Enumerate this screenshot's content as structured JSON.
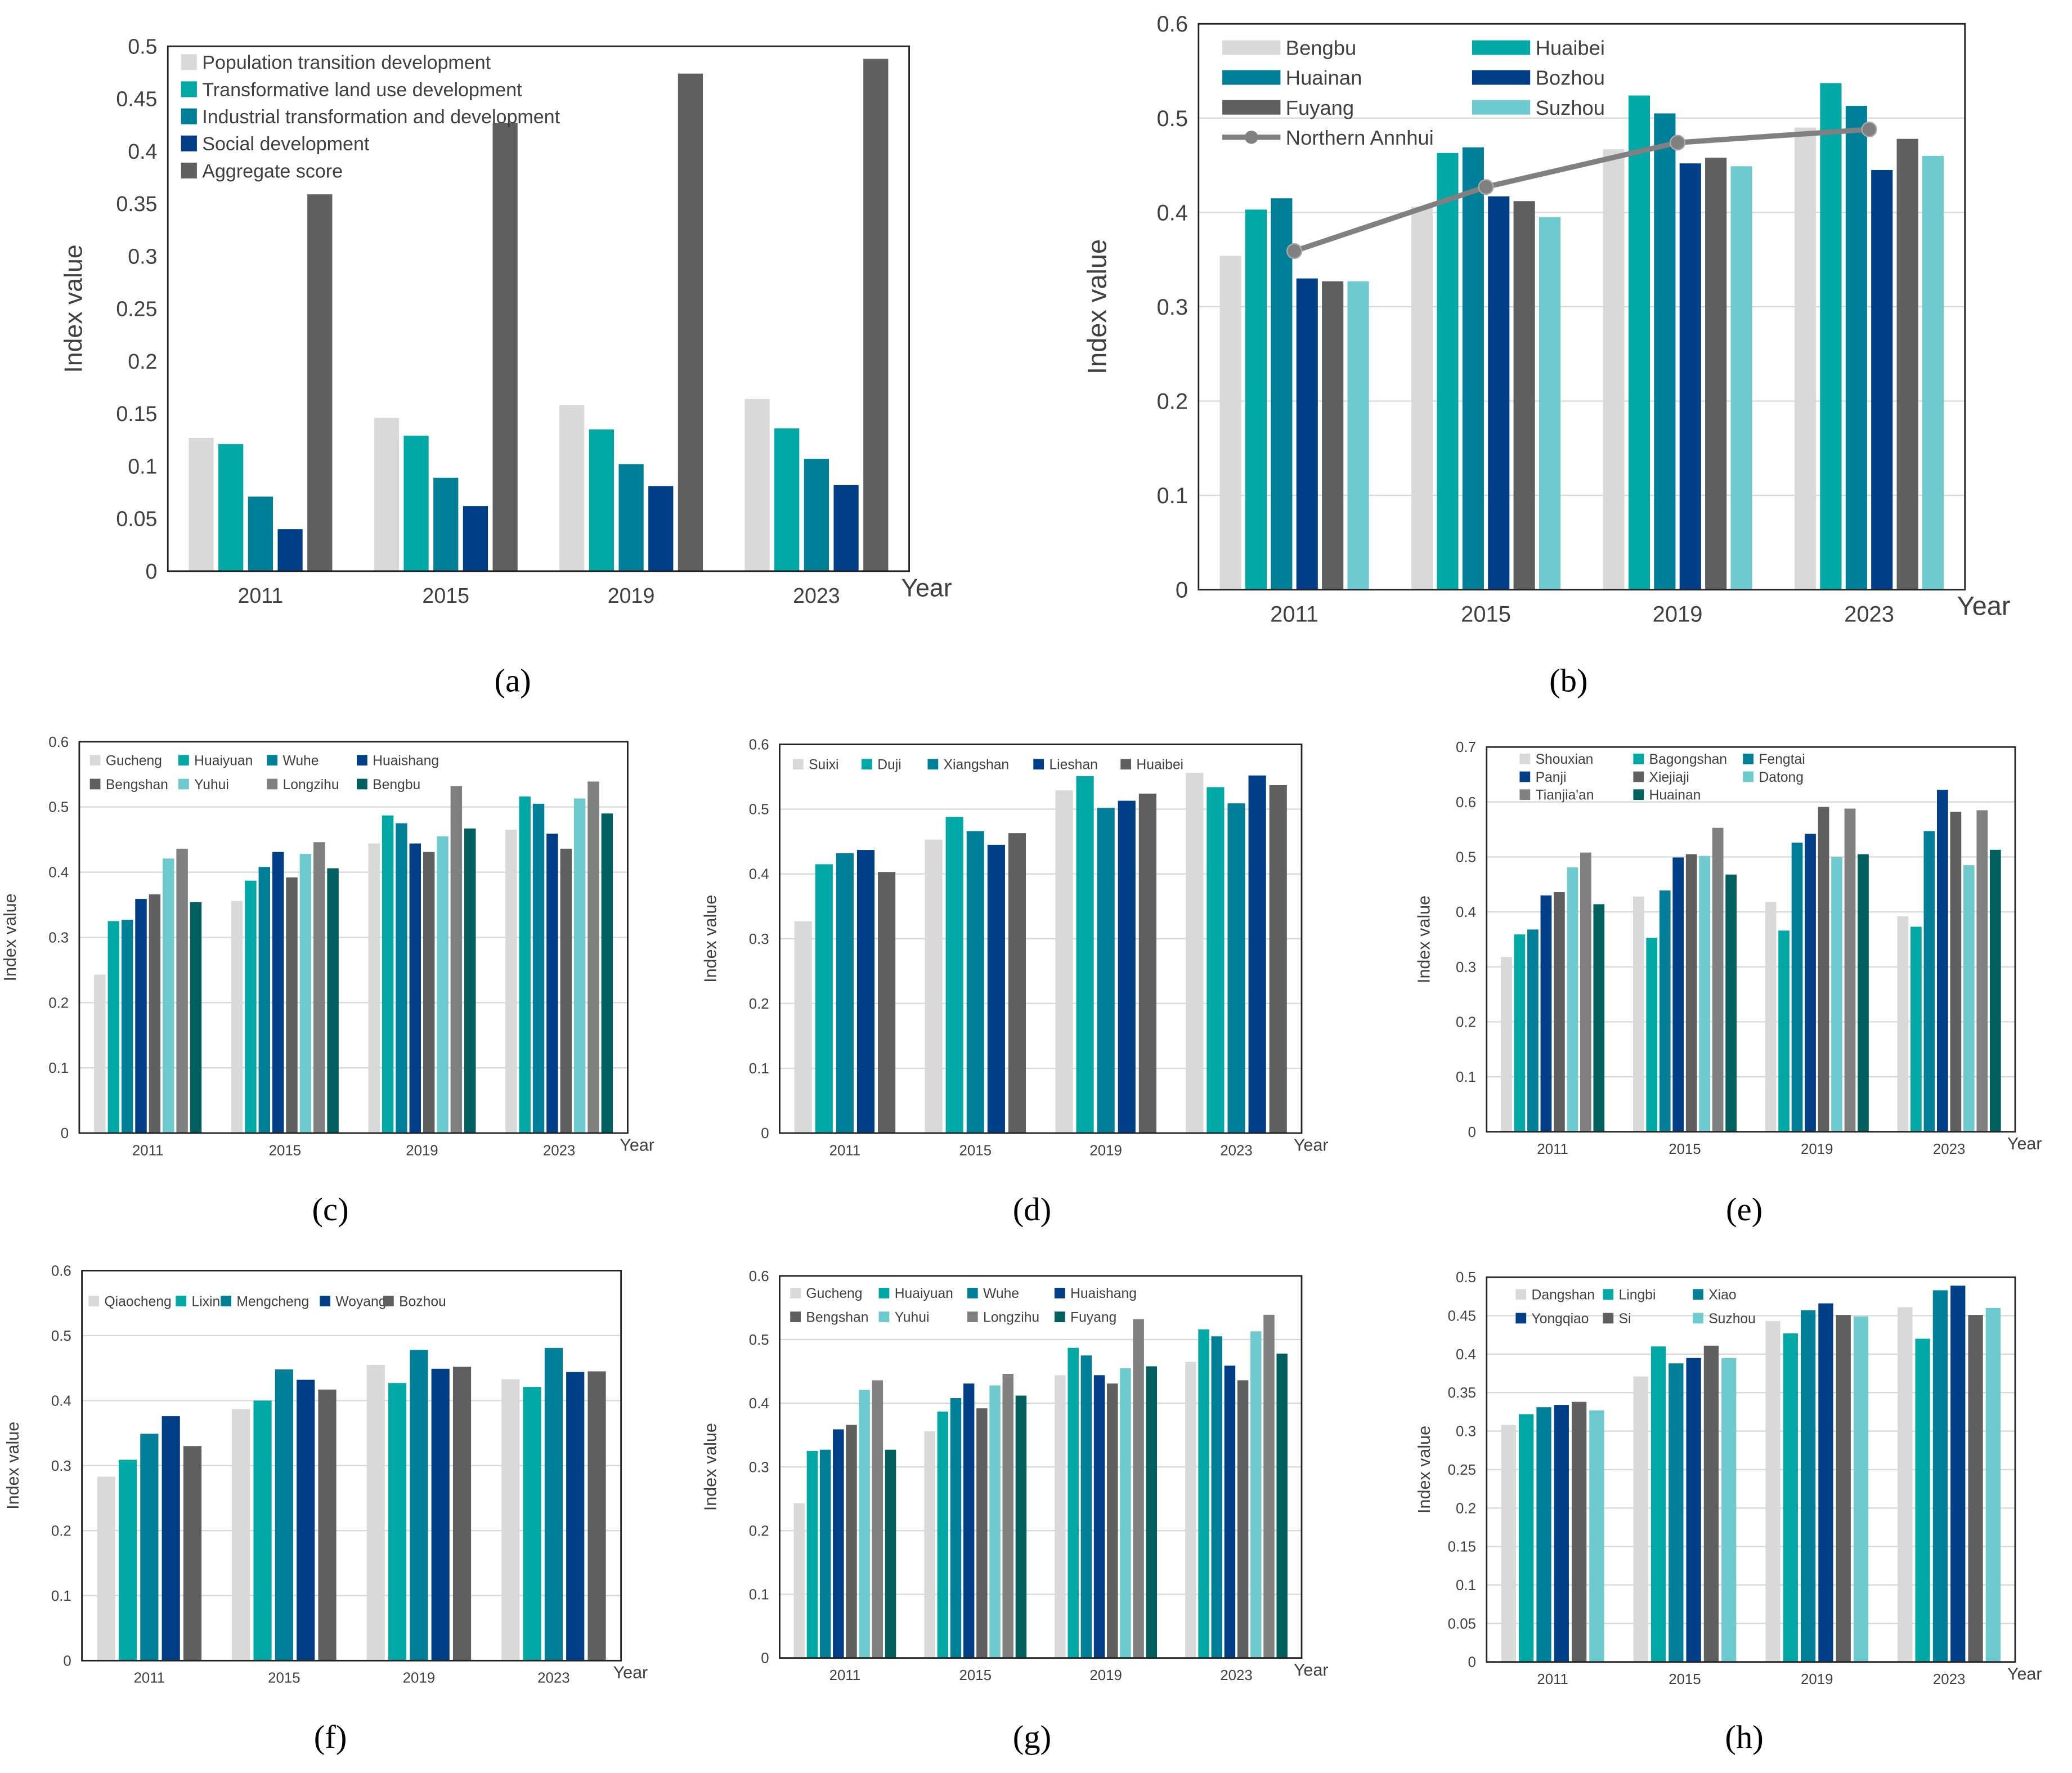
{
  "chart_data": [
    {
      "type": "bar",
      "caption": "(a)",
      "xlabel": "Year",
      "ylabel": "Index value",
      "ylim": [
        0,
        0.5
      ],
      "grid": false,
      "legend": "top-left",
      "categories": [
        "2011",
        "2015",
        "2019",
        "2023"
      ],
      "yticks": [
        "0",
        "0.05",
        "0.1",
        "0.15",
        "0.2",
        "0.25",
        "0.3",
        "0.35",
        "0.4",
        "0.45",
        "0.5"
      ],
      "series": [
        {
          "name": "Population transition development",
          "color": "#d9d9d9",
          "values": [
            0.127,
            0.146,
            0.158,
            0.164
          ]
        },
        {
          "name": "Transformative land use development",
          "color": "#00a9a5",
          "values": [
            0.121,
            0.129,
            0.135,
            0.136
          ]
        },
        {
          "name": "Industrial transformation and development",
          "color": "#007f99",
          "values": [
            0.071,
            0.089,
            0.102,
            0.107
          ]
        },
        {
          "name": "Social development",
          "color": "#003f87",
          "values": [
            0.04,
            0.062,
            0.081,
            0.082
          ]
        },
        {
          "name": "Aggregate score",
          "color": "#5f5f5f",
          "values": [
            0.359,
            0.427,
            0.474,
            0.488
          ]
        }
      ]
    },
    {
      "type": "bar",
      "caption": "(b)",
      "xlabel": "Year",
      "ylabel": "Index value",
      "ylim": [
        0,
        0.6
      ],
      "grid": true,
      "legend": "top-left",
      "categories": [
        "2011",
        "2015",
        "2019",
        "2023"
      ],
      "yticks": [
        "0",
        "0.1",
        "0.2",
        "0.3",
        "0.4",
        "0.5",
        "0.6"
      ],
      "series": [
        {
          "name": "Bengbu",
          "color": "#d9d9d9",
          "values": [
            0.354,
            0.406,
            0.467,
            0.49
          ]
        },
        {
          "name": "Huaibei",
          "color": "#00a9a5",
          "values": [
            0.403,
            0.463,
            0.524,
            0.537
          ]
        },
        {
          "name": "Huainan",
          "color": "#007f99",
          "values": [
            0.415,
            0.469,
            0.505,
            0.513
          ]
        },
        {
          "name": "Bozhou",
          "color": "#003f87",
          "values": [
            0.33,
            0.417,
            0.452,
            0.445
          ]
        },
        {
          "name": "Fuyang",
          "color": "#5f5f5f",
          "values": [
            0.327,
            0.412,
            0.458,
            0.478
          ]
        },
        {
          "name": "Suzhou",
          "color": "#6dcacf",
          "values": [
            0.327,
            0.395,
            0.449,
            0.46
          ]
        }
      ],
      "line_series": {
        "name": "Northern Annhui",
        "color": "#808080",
        "values": [
          0.359,
          0.427,
          0.474,
          0.488
        ]
      }
    },
    {
      "type": "bar",
      "caption": "(c)",
      "xlabel": "Year",
      "ylabel": "Index value",
      "ylim": [
        0,
        0.6
      ],
      "grid": true,
      "legend": "top",
      "categories": [
        "2011",
        "2015",
        "2019",
        "2023"
      ],
      "yticks": [
        "0",
        "0.1",
        "0.2",
        "0.3",
        "0.4",
        "0.5",
        "0.6"
      ],
      "series": [
        {
          "name": "Gucheng",
          "color": "#d9d9d9",
          "values": [
            0.243,
            0.356,
            0.444,
            0.465
          ]
        },
        {
          "name": "Huaiyuan",
          "color": "#00a9a5",
          "values": [
            0.325,
            0.387,
            0.487,
            0.516
          ]
        },
        {
          "name": "Wuhe",
          "color": "#007f99",
          "values": [
            0.327,
            0.408,
            0.475,
            0.505
          ]
        },
        {
          "name": "Huaishang",
          "color": "#003f87",
          "values": [
            0.359,
            0.431,
            0.444,
            0.459
          ]
        },
        {
          "name": "Bengshan",
          "color": "#5f5f5f",
          "values": [
            0.366,
            0.392,
            0.431,
            0.436
          ]
        },
        {
          "name": "Yuhui",
          "color": "#6dcacf",
          "values": [
            0.421,
            0.428,
            0.455,
            0.513
          ]
        },
        {
          "name": "Longzihu",
          "color": "#808080",
          "values": [
            0.436,
            0.446,
            0.532,
            0.539
          ]
        },
        {
          "name": "Bengbu",
          "color": "#006060",
          "values": [
            0.354,
            0.406,
            0.467,
            0.49
          ]
        }
      ]
    },
    {
      "type": "bar",
      "caption": "(d)",
      "xlabel": "Year",
      "ylabel": "Index value",
      "ylim": [
        0,
        0.6
      ],
      "grid": true,
      "legend": "top",
      "categories": [
        "2011",
        "2015",
        "2019",
        "2023"
      ],
      "yticks": [
        "0",
        "0.1",
        "0.2",
        "0.3",
        "0.4",
        "0.5",
        "0.6"
      ],
      "series": [
        {
          "name": "Suixi",
          "color": "#d9d9d9",
          "values": [
            0.327,
            0.453,
            0.529,
            0.556
          ]
        },
        {
          "name": "Duji",
          "color": "#00a9a5",
          "values": [
            0.415,
            0.488,
            0.551,
            0.534
          ]
        },
        {
          "name": "Xiangshan",
          "color": "#007f99",
          "values": [
            0.432,
            0.466,
            0.502,
            0.509
          ]
        },
        {
          "name": "Lieshan",
          "color": "#003f87",
          "values": [
            0.437,
            0.445,
            0.513,
            0.552
          ]
        },
        {
          "name": "Huaibei",
          "color": "#5f5f5f",
          "values": [
            0.403,
            0.463,
            0.524,
            0.537
          ]
        }
      ]
    },
    {
      "type": "bar",
      "caption": "(e)",
      "xlabel": "Year",
      "ylabel": "Index value",
      "ylim": [
        0,
        0.7
      ],
      "grid": true,
      "legend": "top",
      "categories": [
        "2011",
        "2015",
        "2019",
        "2023"
      ],
      "yticks": [
        "0",
        "0.1",
        "0.2",
        "0.3",
        "0.4",
        "0.5",
        "0.6",
        "0.7"
      ],
      "series": [
        {
          "name": "Shouxian",
          "color": "#d9d9d9",
          "values": [
            0.318,
            0.428,
            0.418,
            0.392
          ]
        },
        {
          "name": "Bagongshan",
          "color": "#00a9a5",
          "values": [
            0.359,
            0.353,
            0.366,
            0.373
          ]
        },
        {
          "name": "Fengtai",
          "color": "#007f99",
          "values": [
            0.368,
            0.439,
            0.526,
            0.547
          ]
        },
        {
          "name": "Panji",
          "color": "#003f87",
          "values": [
            0.43,
            0.499,
            0.542,
            0.622
          ]
        },
        {
          "name": "Xiejiaji",
          "color": "#5f5f5f",
          "values": [
            0.436,
            0.505,
            0.591,
            0.582
          ]
        },
        {
          "name": "Datong",
          "color": "#6dcacf",
          "values": [
            0.481,
            0.502,
            0.5,
            0.485
          ]
        },
        {
          "name": "Tianjia'an",
          "color": "#808080",
          "values": [
            0.508,
            0.553,
            0.588,
            0.585
          ]
        },
        {
          "name": "Huainan",
          "color": "#006060",
          "values": [
            0.414,
            0.468,
            0.505,
            0.513
          ]
        }
      ]
    },
    {
      "type": "bar",
      "caption": "(f)",
      "xlabel": "Year",
      "ylabel": "Index value",
      "ylim": [
        0,
        0.6
      ],
      "grid": true,
      "legend": "top",
      "categories": [
        "2011",
        "2015",
        "2019",
        "2023"
      ],
      "yticks": [
        "0",
        "0.1",
        "0.2",
        "0.3",
        "0.4",
        "0.5",
        "0.6"
      ],
      "series": [
        {
          "name": "Qiaocheng",
          "color": "#d9d9d9",
          "values": [
            0.283,
            0.387,
            0.455,
            0.433
          ]
        },
        {
          "name": "Lixin",
          "color": "#00a9a5",
          "values": [
            0.309,
            0.4,
            0.427,
            0.421
          ]
        },
        {
          "name": "Mengcheng",
          "color": "#007f99",
          "values": [
            0.349,
            0.448,
            0.478,
            0.481
          ]
        },
        {
          "name": "Woyang",
          "color": "#003f87",
          "values": [
            0.376,
            0.432,
            0.449,
            0.444
          ]
        },
        {
          "name": "Bozhou",
          "color": "#5f5f5f",
          "values": [
            0.33,
            0.417,
            0.452,
            0.445
          ]
        }
      ]
    },
    {
      "type": "bar",
      "caption": "(g)",
      "xlabel": "Year",
      "ylabel": "Index value",
      "ylim": [
        0,
        0.6
      ],
      "grid": true,
      "legend": "top",
      "categories": [
        "2011",
        "2015",
        "2019",
        "2023"
      ],
      "yticks": [
        "0",
        "0.1",
        "0.2",
        "0.3",
        "0.4",
        "0.5",
        "0.6"
      ],
      "series": [
        {
          "name": "Gucheng",
          "color": "#d9d9d9",
          "values": [
            0.243,
            0.356,
            0.444,
            0.465
          ]
        },
        {
          "name": "Huaiyuan",
          "color": "#00a9a5",
          "values": [
            0.325,
            0.387,
            0.487,
            0.516
          ]
        },
        {
          "name": "Wuhe",
          "color": "#007f99",
          "values": [
            0.327,
            0.408,
            0.475,
            0.505
          ]
        },
        {
          "name": "Huaishang",
          "color": "#003f87",
          "values": [
            0.359,
            0.431,
            0.444,
            0.459
          ]
        },
        {
          "name": "Bengshan",
          "color": "#5f5f5f",
          "values": [
            0.366,
            0.392,
            0.431,
            0.436
          ]
        },
        {
          "name": "Yuhui",
          "color": "#6dcacf",
          "values": [
            0.421,
            0.428,
            0.455,
            0.513
          ]
        },
        {
          "name": "Longzihu",
          "color": "#808080",
          "values": [
            0.436,
            0.446,
            0.532,
            0.539
          ]
        },
        {
          "name": "Fuyang",
          "color": "#006060",
          "values": [
            0.327,
            0.412,
            0.458,
            0.478
          ]
        }
      ]
    },
    {
      "type": "bar",
      "caption": "(h)",
      "xlabel": "Year",
      "ylabel": "Index value",
      "ylim": [
        0,
        0.5
      ],
      "grid": true,
      "legend": "top",
      "categories": [
        "2011",
        "2015",
        "2019",
        "2023"
      ],
      "yticks": [
        "0",
        "0.05",
        "0.1",
        "0.15",
        "0.2",
        "0.25",
        "0.3",
        "0.35",
        "0.4",
        "0.45",
        "0.5"
      ],
      "series": [
        {
          "name": "Dangshan",
          "color": "#d9d9d9",
          "values": [
            0.308,
            0.371,
            0.443,
            0.461
          ]
        },
        {
          "name": "Lingbi",
          "color": "#00a9a5",
          "values": [
            0.322,
            0.41,
            0.427,
            0.42
          ]
        },
        {
          "name": "Xiao",
          "color": "#007f99",
          "values": [
            0.331,
            0.388,
            0.457,
            0.483
          ]
        },
        {
          "name": "Yongqiao",
          "color": "#003f87",
          "values": [
            0.334,
            0.395,
            0.466,
            0.489
          ]
        },
        {
          "name": "Si",
          "color": "#5f5f5f",
          "values": [
            0.338,
            0.411,
            0.451,
            0.451
          ]
        },
        {
          "name": "Suzhou",
          "color": "#6dcacf",
          "values": [
            0.327,
            0.395,
            0.449,
            0.46
          ]
        }
      ]
    }
  ]
}
